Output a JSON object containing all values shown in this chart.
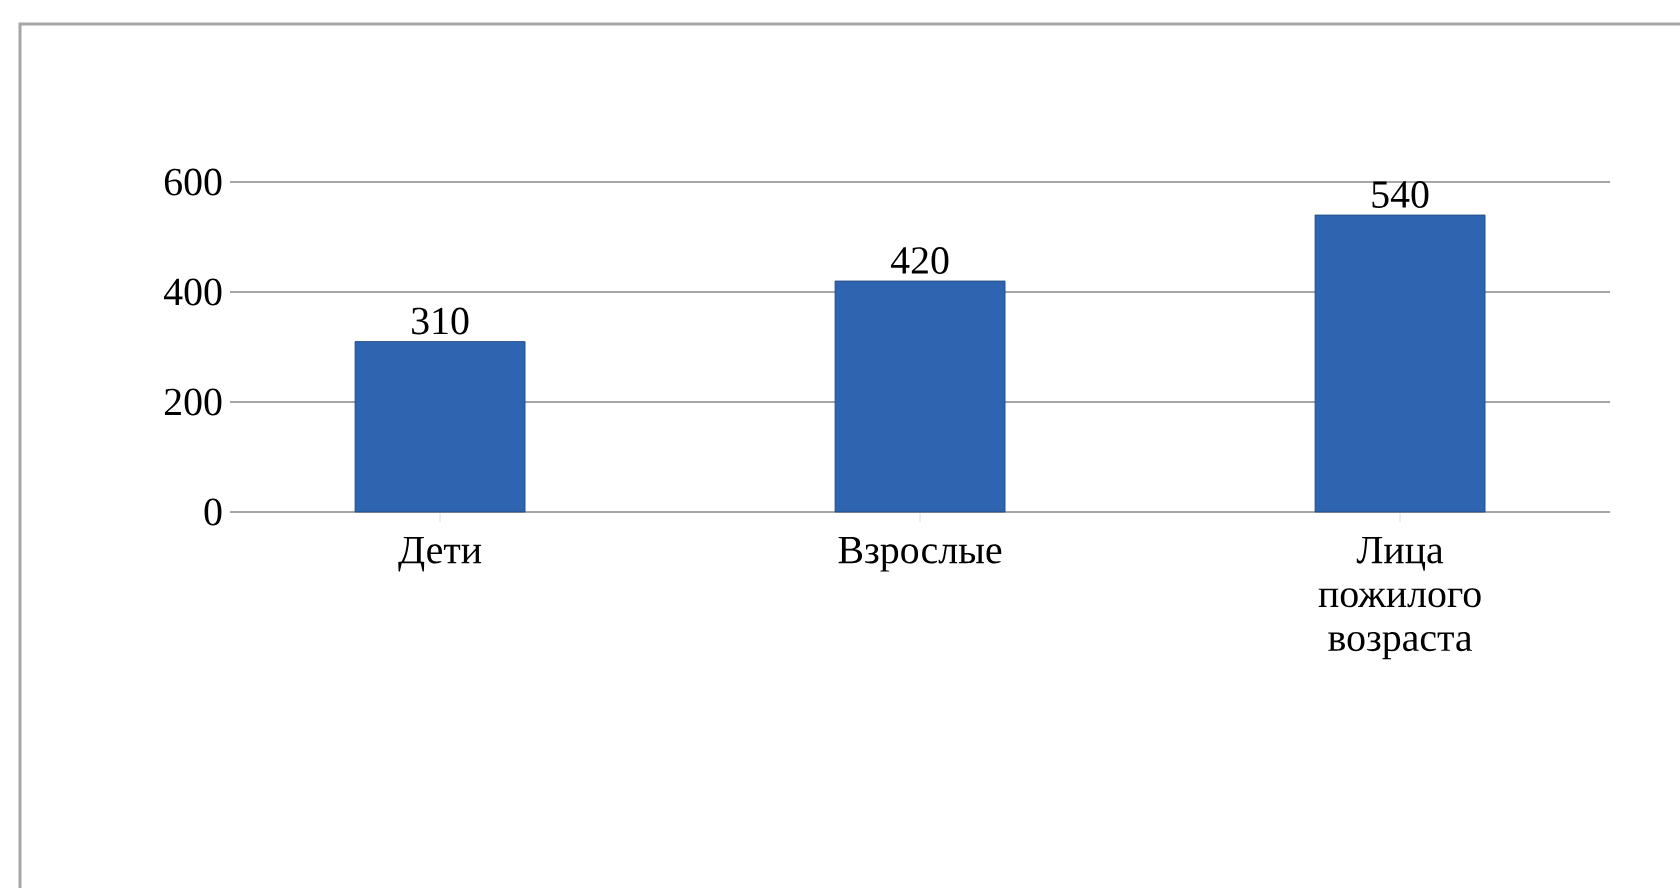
{
  "chart_data": {
    "type": "bar",
    "categories": [
      "Дети",
      "Взрослые",
      "Лица пожилого возраста"
    ],
    "values": [
      310,
      420,
      540
    ],
    "color": "#2e64b0",
    "ylim": [
      0,
      600
    ],
    "yticks": [
      0,
      200,
      400,
      600
    ],
    "grid": "y",
    "data_labels": true
  }
}
